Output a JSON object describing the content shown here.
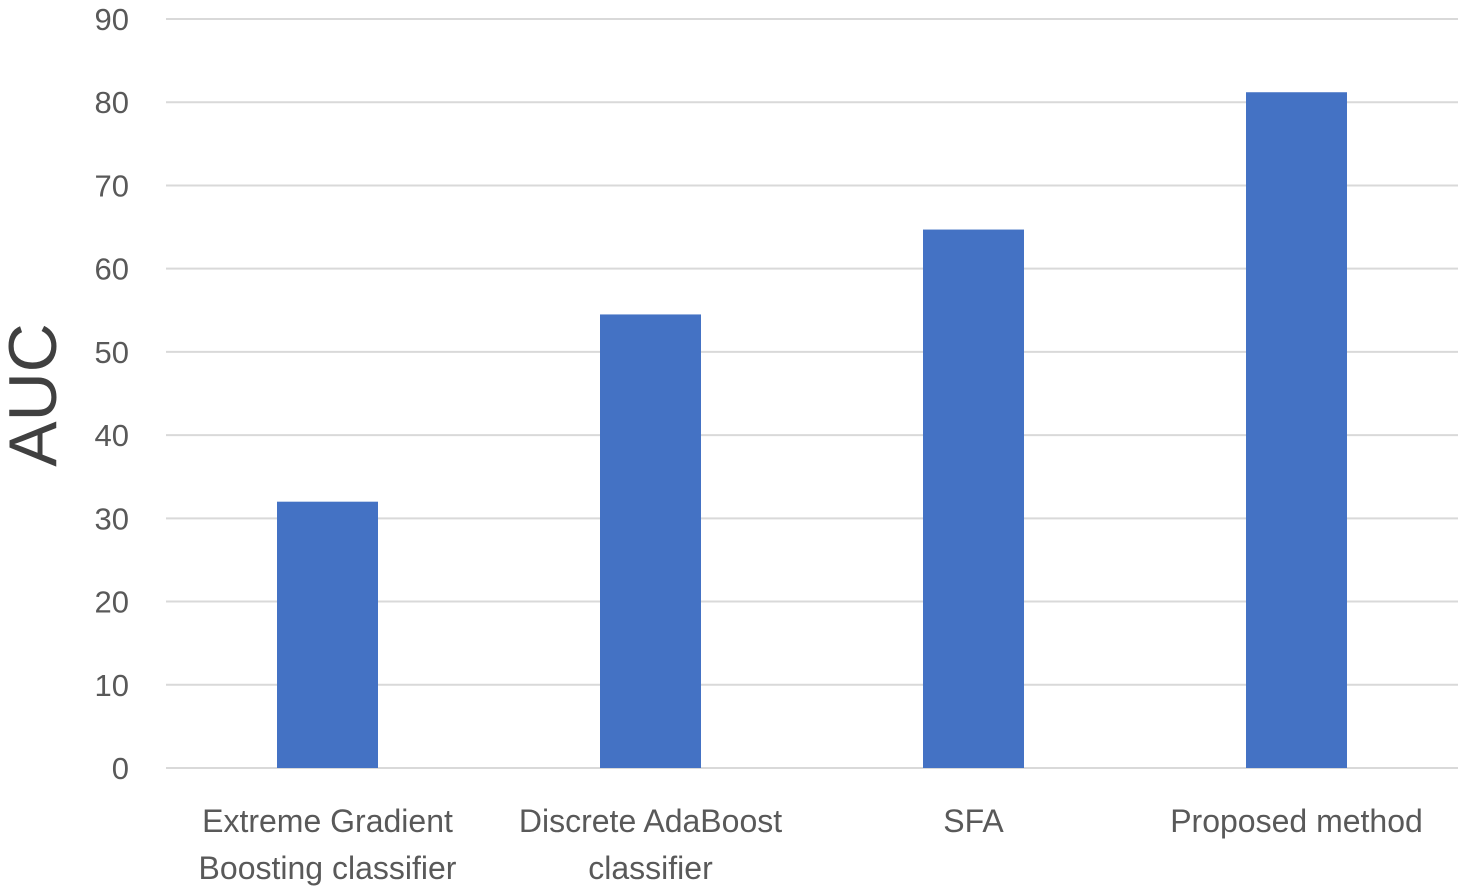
{
  "chart_data": {
    "type": "bar",
    "categories": [
      [
        "Extreme Gradient",
        "Boosting classifier"
      ],
      [
        "Discrete AdaBoost",
        "classifier"
      ],
      [
        "SFA"
      ],
      [
        "Proposed method"
      ]
    ],
    "values": [
      32,
      54.5,
      64.7,
      81.2
    ],
    "title": "",
    "xlabel": "",
    "ylabel": "AUC",
    "ylim": [
      0,
      90
    ],
    "yticks": [
      0,
      10,
      20,
      30,
      40,
      50,
      60,
      70,
      80,
      90
    ],
    "grid": true,
    "legend": "none",
    "bar_color": "#4472c4",
    "grid_color": "#d9d9d9",
    "label_color": "#595959"
  }
}
